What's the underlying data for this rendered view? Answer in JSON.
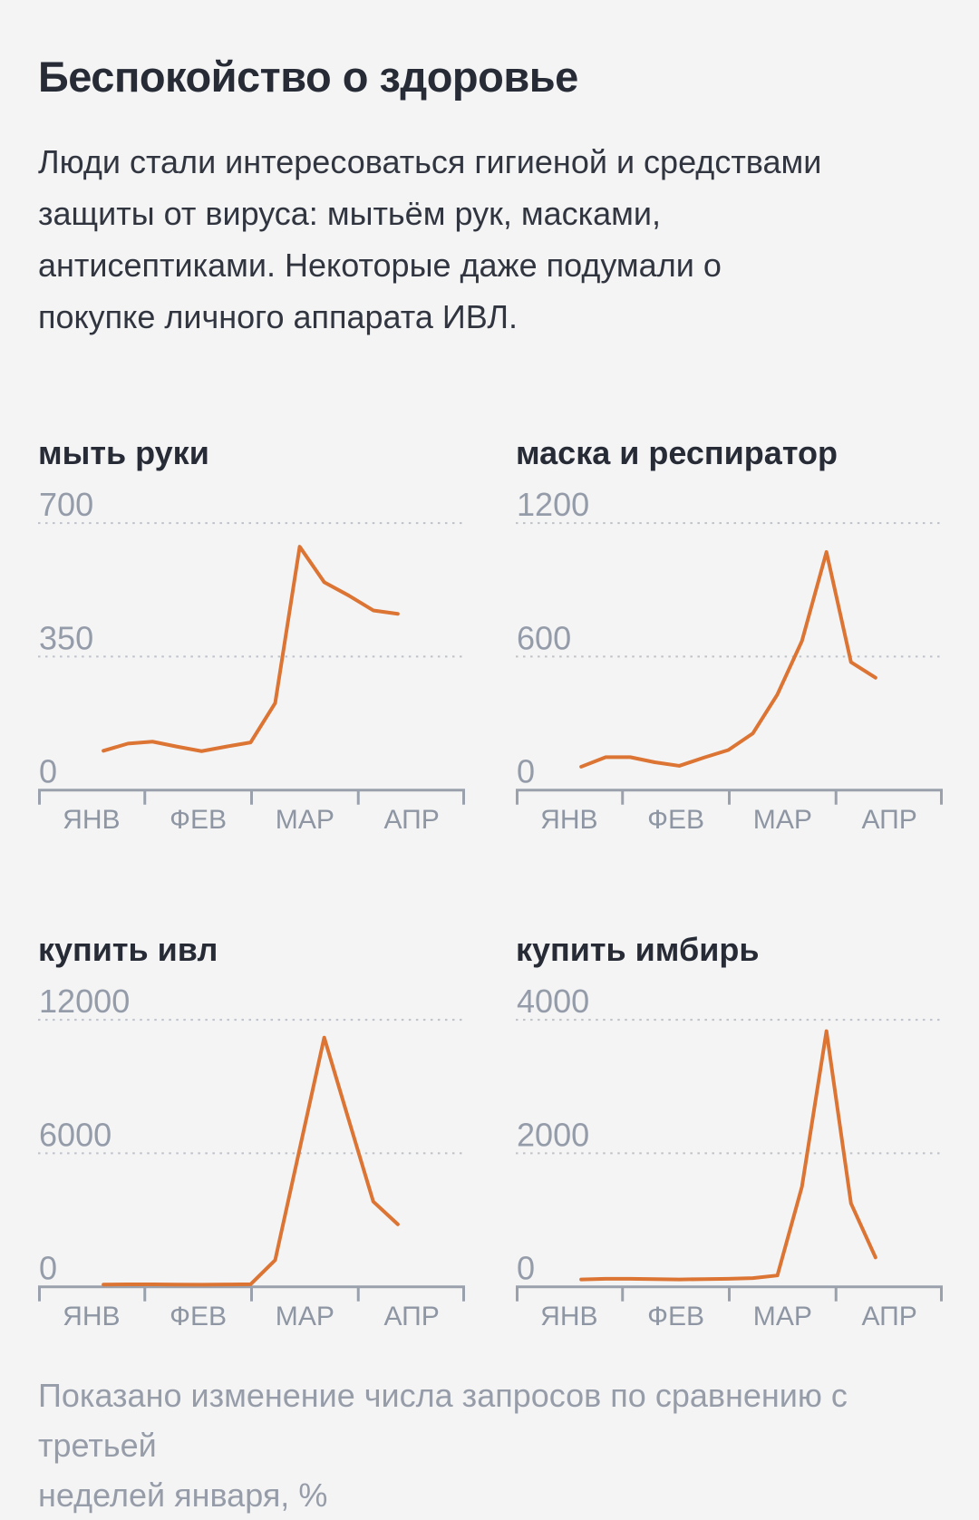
{
  "header": {
    "title": "Беспокойство о здоровье"
  },
  "intro": {
    "lines": [
      "Люди стали интересоваться гигиеной и средствами",
      "защиты от вируса: мытьём рук, масками,",
      "антисептиками. Некоторые даже подумали о",
      "покупке личного аппарата ИВЛ."
    ]
  },
  "footnote": {
    "lines": [
      "Показано изменение числа запросов по сравнению с третьей",
      "неделей января, %"
    ]
  },
  "theme": {
    "background": "#f4f4f5",
    "heading_color": "#262b36",
    "body_color": "#30353f",
    "accent_line_color": "#dc7434",
    "gridline_color": "#bdc1c8",
    "axis_color": "#9aa1ac",
    "ytick_color": "#959ca9",
    "xtick_color": "#8e96a3",
    "footnote_color": "#969da9"
  },
  "chart_data": [
    {
      "type": "line",
      "title": "мыть руки",
      "x_categories": [
        "ЯНВ",
        "ФЕВ",
        "МАР",
        "АПР"
      ],
      "ylim": [
        0,
        700
      ],
      "yticks": [
        0,
        350,
        700
      ],
      "grid": "dotted-horizontal",
      "legend": "none",
      "values": [
        103,
        122,
        127,
        114,
        102,
        114,
        125,
        228,
        638,
        545,
        510,
        471,
        462
      ]
    },
    {
      "type": "line",
      "title": "маска и респиратор",
      "x_categories": [
        "ЯНВ",
        "ФЕВ",
        "МАР",
        "АПР"
      ],
      "ylim": [
        0,
        1200
      ],
      "yticks": [
        0,
        600,
        1200
      ],
      "grid": "dotted-horizontal",
      "legend": "none",
      "values": [
        105,
        148,
        148,
        125,
        109,
        146,
        180,
        255,
        430,
        670,
        1070,
        575,
        505
      ]
    },
    {
      "type": "line",
      "title": "купить ивл",
      "x_categories": [
        "ЯНВ",
        "ФЕВ",
        "МАР",
        "АПР"
      ],
      "ylim": [
        0,
        12000
      ],
      "yticks": [
        0,
        6000,
        12000
      ],
      "grid": "dotted-horizontal",
      "legend": "none",
      "values": [
        100,
        110,
        110,
        100,
        95,
        105,
        115,
        1200,
        6200,
        11200,
        7500,
        3830,
        2810
      ]
    },
    {
      "type": "line",
      "title": "купить имбирь",
      "x_categories": [
        "ЯНВ",
        "ФЕВ",
        "МАР",
        "АПР"
      ],
      "ylim": [
        0,
        4000
      ],
      "yticks": [
        0,
        2000,
        4000
      ],
      "grid": "dotted-horizontal",
      "legend": "none",
      "values": [
        110,
        120,
        120,
        115,
        110,
        115,
        120,
        130,
        170,
        1500,
        3830,
        1250,
        440
      ]
    }
  ]
}
